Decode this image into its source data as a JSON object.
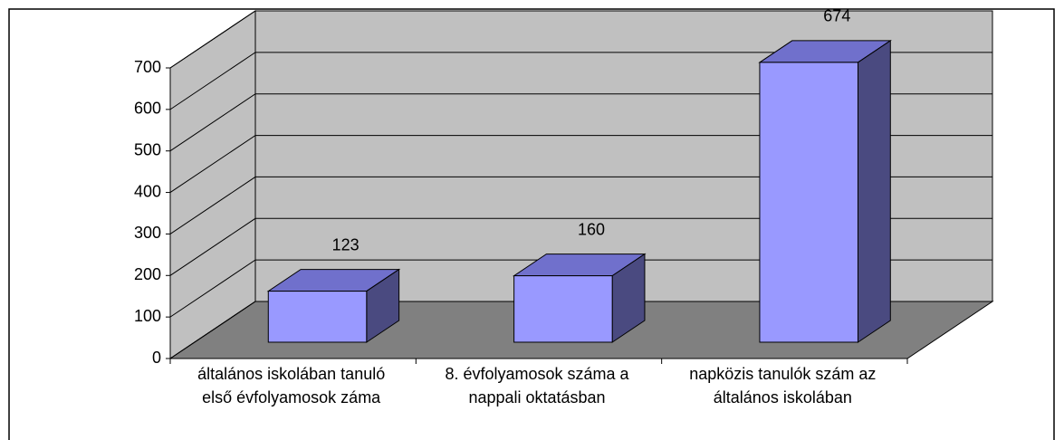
{
  "chart_data": {
    "type": "bar3d",
    "categories": [
      [
        "általános iskolában tanuló",
        "első évfolyamosok záma"
      ],
      [
        "8. évfolyamosok száma a",
        "nappali oktatásban"
      ],
      [
        "napközis tanulók szám az",
        "általános iskolában"
      ]
    ],
    "values": [
      123,
      160,
      674
    ],
    "color": "#9999ff",
    "ylim": [
      0,
      700
    ],
    "yticks": [
      0,
      100,
      200,
      300,
      400,
      500,
      600,
      700
    ],
    "grid": true
  }
}
